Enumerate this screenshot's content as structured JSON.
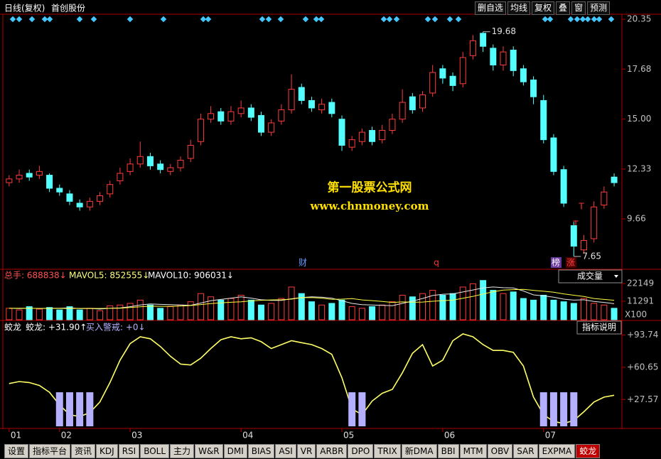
{
  "toolbar": {
    "title": "日线(复权)",
    "stock": "首创股份",
    "buttons": [
      "删自选",
      "均线",
      "复权",
      "叠",
      "窗",
      "预测"
    ]
  },
  "watermark": [
    "第一股票公式网",
    "www.chnmoney.com"
  ],
  "markers": [
    "财",
    "q",
    "榜",
    "涨",
    "T",
    "T"
  ],
  "chart_data": [
    {
      "type": "candlestick",
      "up_color": "#ff3c3c",
      "down_color": "#54ffff",
      "xlim": [
        -0.2,
        60.7
      ],
      "xticks": [
        {
          "value": 0,
          "label": "01"
        },
        {
          "value": 5,
          "label": "02"
        },
        {
          "value": 12,
          "label": "03"
        },
        {
          "value": 23,
          "label": "04"
        },
        {
          "value": 33,
          "label": "05"
        },
        {
          "value": 43,
          "label": "06"
        },
        {
          "value": 53,
          "label": "07"
        }
      ],
      "ylim": [
        7.0,
        20.62
      ],
      "yticks": [
        20.35,
        17.68,
        {
          "value": 15,
          "label": "15.00"
        },
        12.33,
        9.66
      ],
      "open": [
        11.6,
        11.8,
        12.1,
        12.0,
        12.0,
        11.3,
        11.0,
        10.5,
        10.3,
        10.6,
        11.0,
        11.7,
        12.2,
        12.6,
        13.0,
        12.6,
        12.2,
        12.4,
        12.9,
        13.8,
        15.0,
        15.4,
        14.9,
        15.3,
        15.6,
        15.2,
        14.3,
        14.9,
        15.5,
        16.7,
        16.0,
        15.5,
        15.9,
        15.0,
        13.5,
        13.8,
        14.4,
        13.9,
        14.4,
        15.0,
        16.2,
        15.6,
        16.4,
        17.7,
        17.3,
        16.9,
        18.4,
        19.6,
        18.8,
        17.9,
        18.7,
        17.7,
        17.1,
        16.0,
        14.0,
        12.3,
        9.3,
        8.0,
        8.6,
        10.4,
        11.9
      ],
      "high": [
        12.0,
        12.3,
        12.3,
        12.5,
        12.1,
        11.5,
        11.2,
        10.7,
        10.8,
        11.1,
        11.7,
        12.4,
        12.9,
        13.8,
        13.2,
        12.8,
        12.6,
        13.0,
        13.9,
        15.3,
        15.7,
        15.6,
        15.7,
        16.0,
        15.8,
        15.4,
        15.0,
        15.8,
        17.4,
        16.9,
        16.2,
        16.1,
        16.1,
        15.2,
        14.1,
        14.5,
        14.6,
        14.7,
        15.3,
        16.6,
        16.4,
        16.5,
        17.9,
        17.9,
        17.5,
        18.6,
        19.5,
        19.68,
        19.0,
        18.9,
        18.9,
        17.9,
        17.3,
        16.3,
        14.2,
        12.5,
        9.5,
        8.8,
        10.6,
        11.4,
        12.1
      ],
      "low": [
        11.4,
        11.6,
        11.7,
        11.8,
        11.1,
        10.9,
        10.4,
        10.1,
        10.1,
        10.4,
        10.8,
        11.5,
        12.0,
        12.4,
        12.3,
        12.1,
        12.0,
        12.2,
        12.7,
        13.6,
        14.8,
        14.7,
        14.7,
        15.1,
        14.9,
        14.1,
        14.1,
        14.7,
        15.3,
        15.8,
        15.4,
        15.3,
        15.1,
        13.3,
        13.3,
        13.6,
        13.6,
        13.7,
        14.2,
        14.8,
        15.3,
        15.4,
        16.2,
        16.9,
        16.5,
        16.7,
        18.2,
        18.6,
        17.6,
        17.6,
        17.3,
        16.8,
        15.8,
        13.7,
        12.0,
        10.3,
        7.65,
        7.8,
        8.4,
        10.2,
        11.4
      ],
      "close": [
        11.8,
        12.0,
        11.9,
        12.2,
        11.3,
        11.1,
        10.6,
        10.3,
        10.6,
        10.9,
        11.5,
        12.1,
        12.6,
        13.0,
        12.5,
        12.3,
        12.4,
        12.8,
        13.6,
        15.0,
        15.3,
        14.9,
        15.4,
        15.6,
        15.1,
        14.3,
        14.8,
        15.5,
        16.6,
        16.0,
        15.6,
        15.8,
        15.3,
        13.6,
        13.9,
        14.3,
        13.8,
        14.4,
        15.0,
        15.9,
        15.5,
        16.3,
        17.5,
        17.2,
        16.8,
        18.3,
        19.2,
        18.9,
        17.9,
        18.6,
        17.6,
        17.0,
        16.2,
        13.9,
        12.2,
        10.5,
        8.2,
        8.5,
        10.3,
        11.1,
        11.6
      ]
    },
    {
      "type": "bar",
      "title": "成交量",
      "unit_label": "X100",
      "legend": [
        "总手: 688838↓",
        "MAVOL5: 852555↓",
        "MAVOL10: 906031↓"
      ],
      "xlim": [
        -0.2,
        60.7
      ],
      "ylim": [
        0,
        30400
      ],
      "yticks": [
        11291,
        22149
      ],
      "values": [
        7000,
        6000,
        8000,
        6500,
        7500,
        6000,
        8000,
        6000,
        7000,
        5500,
        8500,
        9000,
        10000,
        12000,
        9000,
        7000,
        8000,
        9000,
        11000,
        16000,
        14000,
        12000,
        13000,
        15000,
        12000,
        9000,
        10000,
        13000,
        20000,
        16000,
        11000,
        9000,
        10000,
        12000,
        8000,
        7000,
        8000,
        9000,
        11000,
        15000,
        14000,
        16000,
        18000,
        15000,
        16000,
        20000,
        22000,
        24000,
        18000,
        16000,
        17000,
        13000,
        12000,
        15000,
        12000,
        11000,
        10000,
        13000,
        10000,
        9000,
        7000
      ],
      "series": [
        {
          "color": "#e8e8e8",
          "values": [
            7000,
            6800,
            7000,
            6900,
            7000,
            7000,
            7200,
            6800,
            6900,
            6500,
            7000,
            7200,
            8000,
            9000,
            9700,
            9400,
            9200,
            9000,
            8800,
            10200,
            11600,
            12400,
            13200,
            14000,
            13200,
            12200,
            11800,
            11800,
            12800,
            13600,
            14000,
            13800,
            13200,
            11600,
            10000,
            9200,
            9000,
            8800,
            8600,
            10000,
            11400,
            13000,
            14800,
            15600,
            15800,
            17000,
            18200,
            19400,
            20000,
            19600,
            19400,
            17600,
            15200,
            14600,
            13800,
            12600,
            12000,
            12200,
            11200,
            10600,
            9800
          ]
        },
        {
          "color": "#ffff40",
          "values": [
            7000,
            7000,
            7000,
            6900,
            6900,
            6900,
            6900,
            6900,
            6900,
            6900,
            7000,
            7100,
            7500,
            7900,
            8300,
            8200,
            8200,
            8400,
            8700,
            9300,
            9900,
            10300,
            10700,
            11000,
            11500,
            11900,
            12100,
            12200,
            12600,
            13500,
            13600,
            13200,
            12500,
            12600,
            12900,
            12100,
            11700,
            11200,
            10600,
            10900,
            10700,
            10800,
            11300,
            11700,
            12000,
            13100,
            14300,
            15700,
            17100,
            18100,
            18400,
            18600,
            18000,
            17400,
            16800,
            15800,
            15000,
            14200,
            13000,
            12400,
            11900
          ]
        }
      ]
    },
    {
      "type": "line",
      "title": "蛟龙",
      "button": "指标说明",
      "legend": [
        "蛟龙: +31.90↑",
        "买入警戒: +0↓"
      ],
      "xlim": [
        -0.2,
        60.7
      ],
      "ylim": [
        0,
        108.1
      ],
      "yticks": [
        {
          "value": 93.74,
          "label": "+93.74"
        },
        {
          "value": 60.65,
          "label": "+60.65"
        },
        {
          "value": 27.57,
          "label": "+27.57"
        }
      ],
      "series": [
        {
          "type": "line",
          "color": "#ffff66",
          "values": [
            44,
            46,
            45,
            42,
            35,
            22,
            12,
            10,
            14,
            25,
            45,
            68,
            85,
            92,
            90,
            82,
            72,
            64,
            63,
            70,
            80,
            89,
            92,
            90,
            91,
            87,
            80,
            84,
            88,
            86,
            84,
            80,
            74,
            50,
            18,
            12,
            26,
            34,
            38,
            55,
            75,
            84,
            62,
            68,
            88,
            95,
            92,
            84,
            78,
            78,
            76,
            62,
            30,
            12,
            5,
            3,
            6,
            15,
            25,
            30,
            31.9
          ]
        },
        {
          "type": "bar",
          "color": "#b4b0ff",
          "values": [
            0,
            0,
            0,
            0,
            0,
            35,
            35,
            35,
            35,
            0,
            0,
            0,
            0,
            0,
            0,
            0,
            0,
            0,
            0,
            0,
            0,
            0,
            0,
            0,
            0,
            0,
            0,
            0,
            0,
            0,
            0,
            0,
            0,
            0,
            35,
            35,
            0,
            0,
            0,
            0,
            0,
            0,
            0,
            0,
            0,
            0,
            0,
            0,
            0,
            0,
            0,
            0,
            0,
            35,
            35,
            35,
            35,
            0,
            0,
            0,
            0
          ]
        }
      ]
    }
  ],
  "tabs": [
    "设置",
    "指标平台",
    "资讯",
    "KDJ",
    "RSI",
    "BOLL",
    "主力",
    "W&R",
    "DMI",
    "BIAS",
    "ASI",
    "VR",
    "ARBR",
    "DPO",
    "TRIX",
    "新DMA",
    "BBI",
    "MTM",
    "OBV",
    "SAR",
    "EXPMA",
    "蛟龙"
  ]
}
